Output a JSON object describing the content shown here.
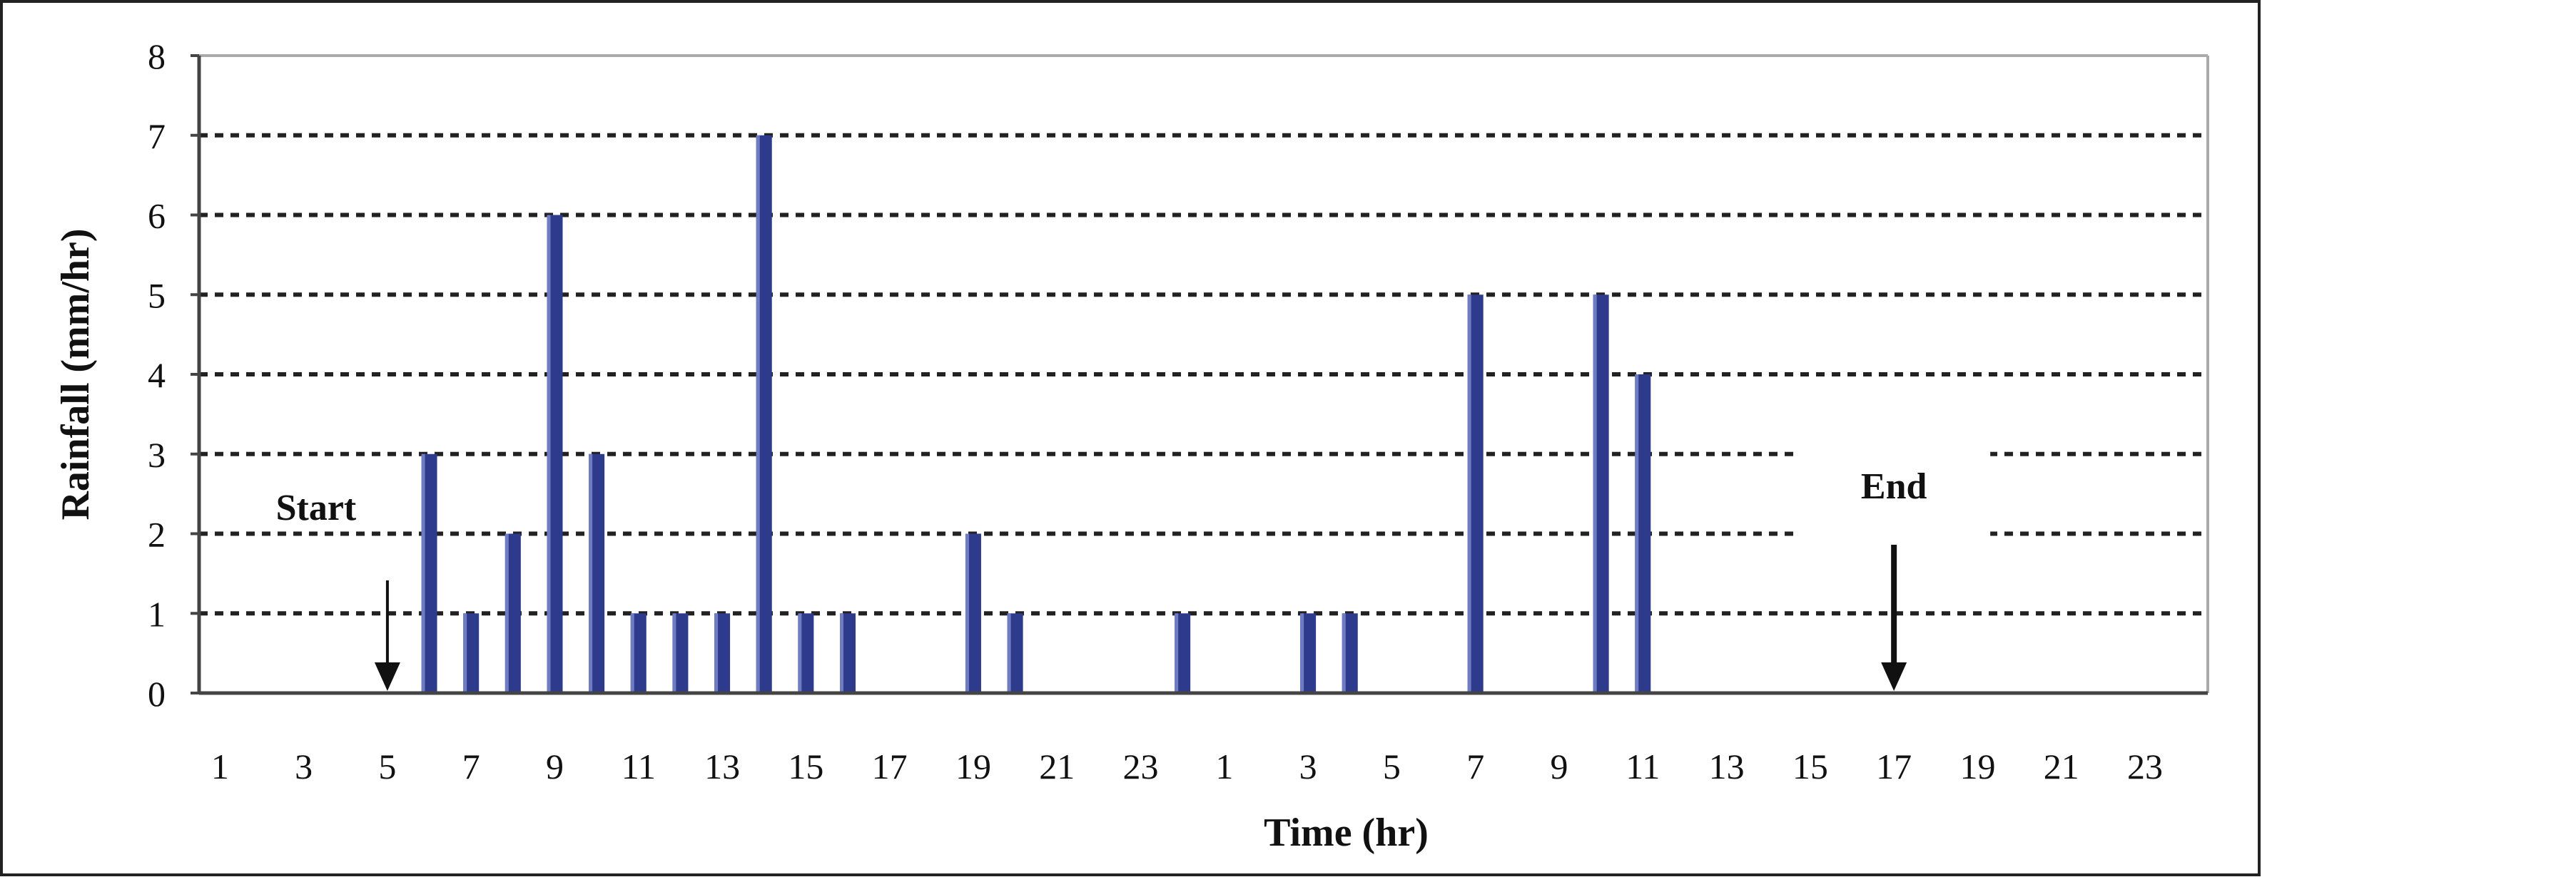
{
  "chart_data": {
    "type": "bar",
    "title": "",
    "xlabel": "Time (hr)",
    "ylabel": "Rainfall (mm/hr)",
    "ylim": [
      0,
      8
    ],
    "yticks": [
      "0",
      "1",
      "2",
      "3",
      "4",
      "5",
      "6",
      "7",
      "8"
    ],
    "xtick_labels": [
      "1",
      "3",
      "5",
      "7",
      "9",
      "11",
      "13",
      "15",
      "17",
      "19",
      "21",
      "23",
      "1",
      "3",
      "5",
      "7",
      "9",
      "11",
      "13",
      "15",
      "17",
      "19",
      "21",
      "23"
    ],
    "grid": true,
    "bar_color": "#2E3A8C",
    "bars": [
      {
        "x": 6,
        "value": 3
      },
      {
        "x": 7,
        "value": 1
      },
      {
        "x": 8,
        "value": 2
      },
      {
        "x": 9,
        "value": 6
      },
      {
        "x": 10,
        "value": 3
      },
      {
        "x": 11,
        "value": 1
      },
      {
        "x": 12,
        "value": 1
      },
      {
        "x": 13,
        "value": 1
      },
      {
        "x": 14,
        "value": 7
      },
      {
        "x": 15,
        "value": 1
      },
      {
        "x": 16,
        "value": 1
      },
      {
        "x": 19,
        "value": 2
      },
      {
        "x": 20,
        "value": 1
      },
      {
        "x": 24,
        "value": 1
      },
      {
        "x": 27,
        "value": 1
      },
      {
        "x": 28,
        "value": 1
      },
      {
        "x": 31,
        "value": 5
      },
      {
        "x": 34,
        "value": 5
      },
      {
        "x": 35,
        "value": 4
      }
    ],
    "annotations": [
      {
        "label": "Start",
        "x": 5
      },
      {
        "label": "End",
        "x": 41
      }
    ]
  }
}
